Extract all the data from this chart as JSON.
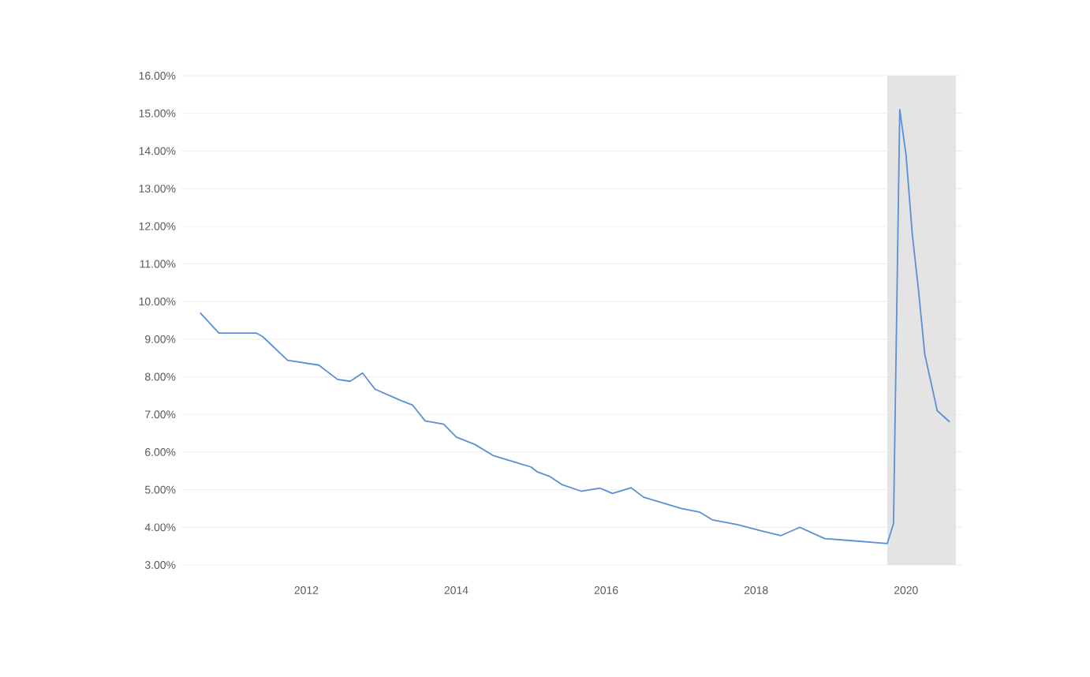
{
  "chart_data": {
    "type": "line",
    "x": [
      "2010-08",
      "2010-11",
      "2011-05",
      "2011-06",
      "2011-10",
      "2012-03",
      "2012-06",
      "2012-08",
      "2012-10",
      "2012-12",
      "2013-04",
      "2013-06",
      "2013-08",
      "2013-11",
      "2014-01",
      "2014-04",
      "2014-07",
      "2014-11",
      "2015-01",
      "2015-02",
      "2015-04",
      "2015-06",
      "2015-09",
      "2015-12",
      "2016-02",
      "2016-05",
      "2016-07",
      "2017-01",
      "2017-04",
      "2017-06",
      "2017-10",
      "2018-02",
      "2018-05",
      "2018-08",
      "2018-12",
      "2019-04",
      "2019-10",
      "2019-11",
      "2019-12",
      "2020-01",
      "2020-02",
      "2020-03",
      "2020-04",
      "2020-06",
      "2020-08"
    ],
    "series": [
      {
        "color": "#5b8fd6",
        "values": [
          9.7,
          9.16,
          9.16,
          9.07,
          8.44,
          8.31,
          7.93,
          7.88,
          8.1,
          7.67,
          7.38,
          7.25,
          6.83,
          6.74,
          6.4,
          6.2,
          5.9,
          5.7,
          5.6,
          5.47,
          5.35,
          5.13,
          4.96,
          5.04,
          4.9,
          5.05,
          4.8,
          4.5,
          4.4,
          4.2,
          4.07,
          3.9,
          3.78,
          4.0,
          3.7,
          3.65,
          3.57,
          4.1,
          15.1,
          13.9,
          11.8,
          10.3,
          8.6,
          7.1,
          6.8
        ]
      }
    ],
    "xlim": [
      "2010-05",
      "2020-10"
    ],
    "xticks": [
      "2012",
      "2014",
      "2016",
      "2018",
      "2020"
    ],
    "ylim": [
      3,
      16
    ],
    "yticks": [
      {
        "value": 3,
        "label": "3.00%"
      },
      {
        "value": 4,
        "label": "4.00%"
      },
      {
        "value": 5,
        "label": "5.00%"
      },
      {
        "value": 6,
        "label": "6.00%"
      },
      {
        "value": 7,
        "label": "7.00%"
      },
      {
        "value": 8,
        "label": "8.00%"
      },
      {
        "value": 9,
        "label": "9.00%"
      },
      {
        "value": 10,
        "label": "10.00%"
      },
      {
        "value": 11,
        "label": "11.00%"
      },
      {
        "value": 12,
        "label": "12.00%"
      },
      {
        "value": 13,
        "label": "13.00%"
      },
      {
        "value": 14,
        "label": "14.00%"
      },
      {
        "value": 15,
        "label": "15.00%"
      },
      {
        "value": 16,
        "label": "16.00%"
      }
    ],
    "bands": [
      {
        "axis": "x",
        "from": "2019-10",
        "to": "2020-09",
        "color": "#e4e4e4"
      }
    ],
    "grid": "y",
    "legend": false,
    "marker": "none",
    "line_style": "solid"
  }
}
